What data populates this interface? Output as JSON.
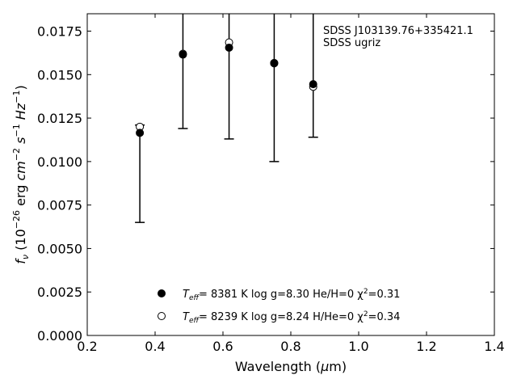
{
  "chart_data": {
    "type": "scatter",
    "xlabel": "Wavelength (μm)",
    "ylabel": "f_ν (10^−26 erg cm^−2 s^−1 Hz^−1)",
    "xlim": [
      0.2,
      1.4
    ],
    "ylim": [
      0.0,
      0.0185
    ],
    "xticks": [
      "0.2",
      "0.4",
      "0.6",
      "0.8",
      "1.0",
      "1.2",
      "1.4"
    ],
    "yticks": [
      "0.0000",
      "0.0025",
      "0.0050",
      "0.0075",
      "0.0100",
      "0.0125",
      "0.0150",
      "0.0175"
    ],
    "annotation": [
      "SDSS J103139.76+335421.1",
      "SDSS ugriz"
    ],
    "observed": {
      "x": [
        0.355,
        0.482,
        0.618,
        0.751,
        0.866
      ],
      "y": [
        0.01165,
        0.01615,
        0.01655,
        0.01567,
        0.01445
      ],
      "err_low": [
        0.0065,
        0.0119,
        0.0113,
        0.01,
        0.0114
      ],
      "err_high": [
        0.0121,
        0.0185,
        0.0185,
        0.0185,
        0.0185
      ]
    },
    "series": [
      {
        "name": "T_eff=  8381 K  log g=8.30  He/H=0  χ²=0.31",
        "label": {
          "pre": "T",
          "sub": "eff",
          "mid": "=  8381 K  log g=8.30  He/H=0  χ",
          "sup": "2",
          "post": "=0.31"
        },
        "marker": "filled",
        "x": [
          0.355,
          0.482,
          0.618,
          0.751,
          0.866
        ],
        "y": [
          0.01165,
          0.01615,
          0.01655,
          0.01567,
          0.01445
        ]
      },
      {
        "name": "T_eff=  8239 K  log g=8.24  H/He=0  χ²=0.34",
        "label": {
          "pre": "T",
          "sub": "eff",
          "mid": "=  8239 K  log g=8.24  H/He=0  χ",
          "sup": "2",
          "post": "=0.34"
        },
        "marker": "open",
        "x": [
          0.355,
          0.482,
          0.618,
          0.751,
          0.866
        ],
        "y": [
          0.012,
          0.0162,
          0.01685,
          0.01565,
          0.0143
        ]
      }
    ],
    "legend_position": "bottom-center",
    "grid": false
  },
  "colors": {
    "marker": "#000000",
    "background": "#ffffff"
  }
}
